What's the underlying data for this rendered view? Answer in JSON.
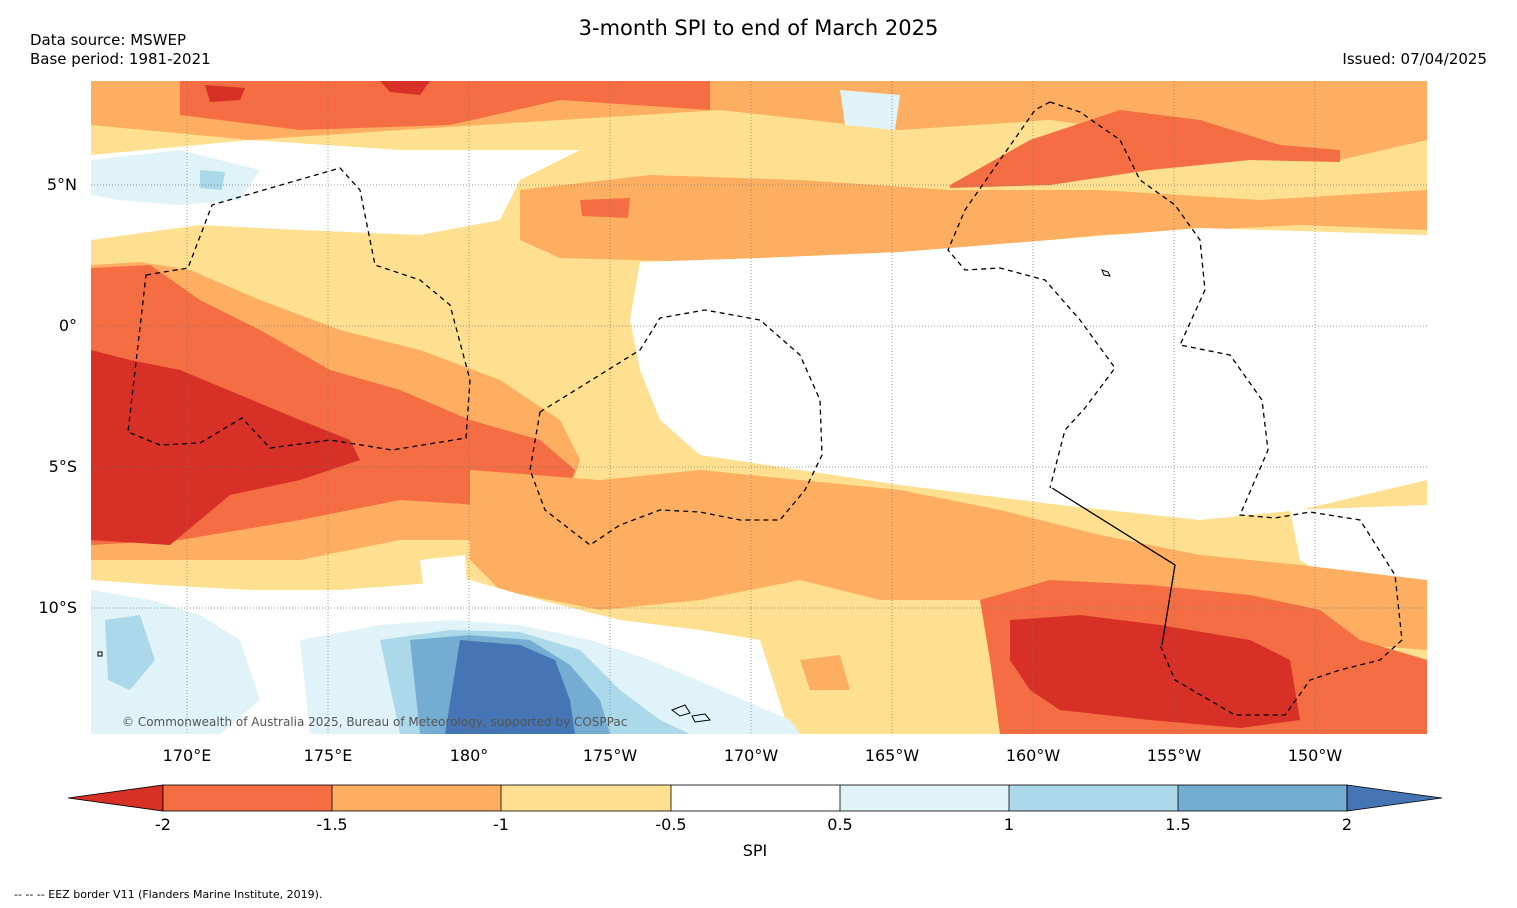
{
  "title": "3-month SPI to end of March 2025",
  "data_source": "Data source: MSWEP",
  "base_period": "Base period: 1981-2021",
  "issued": "Issued: 07/04/2025",
  "lat_labels": [
    "5°N",
    "0°",
    "5°S",
    "10°S"
  ],
  "lon_labels": [
    "170°E",
    "175°E",
    "180°",
    "175°W",
    "170°W",
    "165°W",
    "160°W",
    "155°W",
    "150°W"
  ],
  "colorbar": {
    "label": "SPI",
    "ticks": [
      "-2",
      "-1.5",
      "-1",
      "-0.5",
      "0.5",
      "1",
      "1.5",
      "2"
    ],
    "colors": [
      "#d73027",
      "#f46d43",
      "#fdae61",
      "#fee090",
      "#ffffff",
      "#e0f3f8",
      "#abd9e9",
      "#74add1",
      "#4575b4"
    ]
  },
  "copyright": "© Commonwealth of Australia 2025, Bureau of Meteorology, supported by COSPPac",
  "eez_note": "-- -- -- EEZ border V11 (Flanders Marine Institute, 2019)."
}
